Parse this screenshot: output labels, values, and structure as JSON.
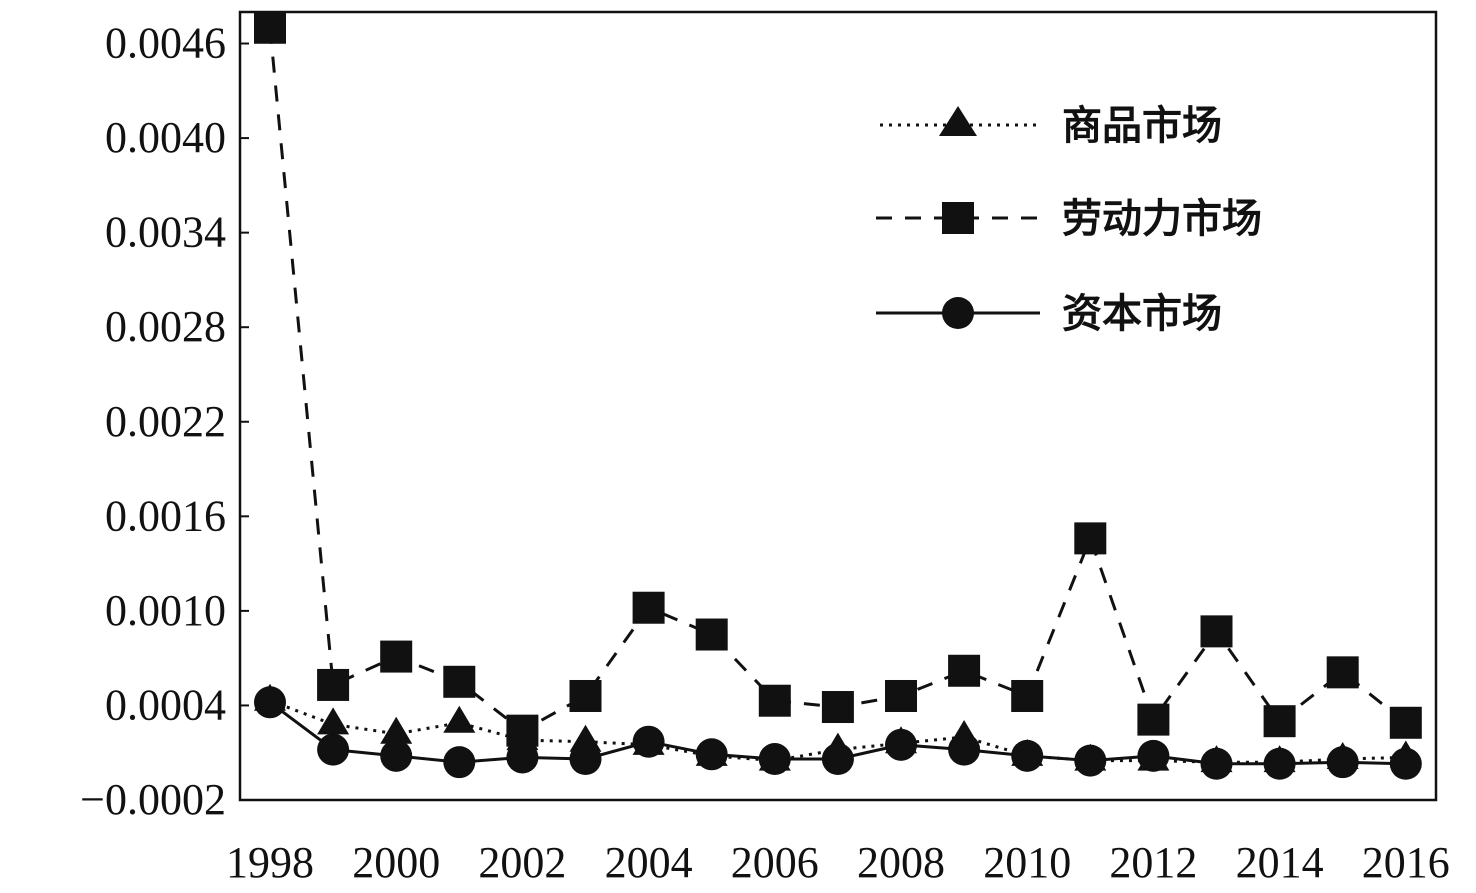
{
  "chart_data": {
    "type": "line",
    "x": [
      1998,
      1999,
      2000,
      2001,
      2002,
      2003,
      2004,
      2005,
      2006,
      2007,
      2008,
      2009,
      2010,
      2011,
      2012,
      2013,
      2014,
      2015,
      2016
    ],
    "xlim": [
      1998,
      2017
    ],
    "ylim": [
      -0.0002,
      0.0048
    ],
    "xticks": [
      1998,
      2000,
      2002,
      2004,
      2006,
      2008,
      2010,
      2012,
      2014,
      2016
    ],
    "xtick_labels": [
      "1998",
      "2000",
      "2002",
      "2004",
      "2006",
      "2008",
      "2010",
      "2012",
      "2014",
      "2016"
    ],
    "yticks": [
      -0.0002,
      0.0004,
      0.001,
      0.0016,
      0.0022,
      0.0028,
      0.0034,
      0.004,
      0.0046
    ],
    "ytick_labels": [
      "−0.0002",
      "0.0004",
      "0.0010",
      "0.0016",
      "0.0022",
      "0.0028",
      "0.0034",
      "0.0040",
      "0.0046"
    ],
    "grid": false,
    "legend_position": "top-right",
    "series": [
      {
        "name": "商品市场",
        "line_style": "dotted",
        "marker": "triangle",
        "values": [
          0.00043,
          0.00028,
          0.00022,
          0.00029,
          0.00018,
          0.00017,
          0.00015,
          8e-05,
          5e-05,
          0.00012,
          0.00016,
          0.0002,
          8e-05,
          5e-05,
          5e-05,
          4e-05,
          4e-05,
          6e-05,
          7e-05
        ]
      },
      {
        "name": "劳动力市场",
        "line_style": "dashed",
        "marker": "square",
        "values": [
          0.0047,
          0.00053,
          0.00071,
          0.00055,
          0.00024,
          0.00046,
          0.00102,
          0.00085,
          0.00043,
          0.00039,
          0.00046,
          0.00062,
          0.00046,
          0.00146,
          0.00031,
          0.00087,
          0.0003,
          0.00061,
          0.00029
        ]
      },
      {
        "name": "资本市场",
        "line_style": "solid",
        "marker": "circle",
        "values": [
          0.00042,
          0.00012,
          8e-05,
          4e-05,
          7e-05,
          6e-05,
          0.00017,
          9e-05,
          6e-05,
          6e-05,
          0.00015,
          0.00012,
          8e-05,
          5e-05,
          8e-05,
          3e-05,
          3e-05,
          4e-05,
          3e-05
        ]
      }
    ]
  },
  "colors": {
    "ink": "#111111",
    "background": "#ffffff"
  }
}
